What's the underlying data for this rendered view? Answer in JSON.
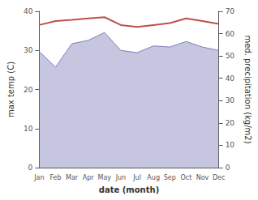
{
  "chart_data": {
    "type": "line",
    "xlabel": "date (month)",
    "ylabel": "max temp (C)",
    "y2label": "med. precipitation (kg/m2)",
    "categories": [
      "Jan",
      "Feb",
      "Mar",
      "Apr",
      "May",
      "Jun",
      "Jul",
      "Aug",
      "Sep",
      "Oct",
      "Nov",
      "Dec"
    ],
    "series": [
      {
        "type": "area",
        "axis": "y2",
        "color": "#8080bb",
        "values": [
          52.0,
          45.0,
          55.5,
          57.0,
          60.5,
          52.5,
          51.5,
          54.5,
          54.0,
          56.5,
          54.0,
          52.5
        ]
      },
      {
        "type": "line",
        "axis": "y",
        "color": "#c0504d",
        "values": [
          36.5,
          37.5,
          37.8,
          38.2,
          38.5,
          36.5,
          36.0,
          36.5,
          37.0,
          38.2,
          37.5,
          36.8
        ]
      }
    ],
    "ylim": [
      0,
      40
    ],
    "yticks": [
      0,
      10,
      20,
      30,
      40
    ],
    "y2lim": [
      0,
      70
    ],
    "y2ticks": [
      0,
      10,
      20,
      30,
      40,
      50,
      60,
      70
    ],
    "grid": false
  }
}
